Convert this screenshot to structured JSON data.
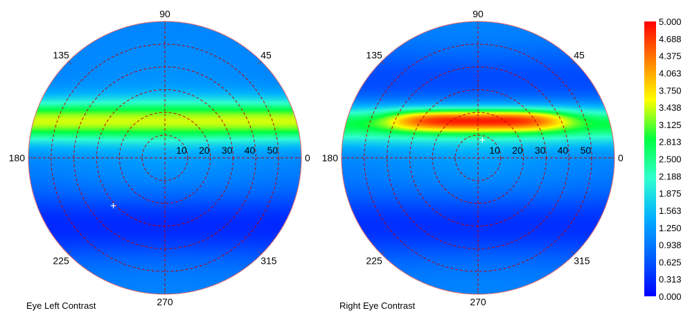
{
  "chart_data": [
    {
      "type": "heatmap",
      "title": "Eye Left Contrast",
      "projection": "polar",
      "angle_ticks": [
        "0",
        "45",
        "90",
        "135",
        "180",
        "225",
        "270",
        "315"
      ],
      "radial_ticks": [
        "10",
        "20",
        "30",
        "40",
        "50"
      ],
      "radial_range": [
        0,
        60
      ],
      "grid": "dashed red",
      "bands": [
        {
          "center_y": 0.27,
          "width": 0.22,
          "level": 3.45
        },
        {
          "center_y": -0.5,
          "width": 0.4,
          "level": 0.3
        }
      ],
      "base_level": 1.05,
      "marker": {
        "label": "+",
        "angle_deg": 223,
        "radius": 31
      }
    },
    {
      "type": "heatmap",
      "title": "Right Eye Contrast",
      "projection": "polar",
      "angle_ticks": [
        "0",
        "45",
        "90",
        "135",
        "180",
        "225",
        "270",
        "315"
      ],
      "radial_ticks": [
        "10",
        "20",
        "30",
        "40",
        "50"
      ],
      "radial_range": [
        0,
        60
      ],
      "grid": "dashed red",
      "bands": [
        {
          "center_y": 0.27,
          "width": 0.22,
          "level": 3.2
        },
        {
          "center_y": 0.58,
          "width": 0.35,
          "level": 0.55
        },
        {
          "center_y": -0.5,
          "width": 0.4,
          "level": 0.35
        }
      ],
      "hotspot": {
        "center_y": 0.27,
        "half_length": 0.65,
        "level": 4.85
      },
      "base_level": 1.05,
      "marker": {
        "label": "+",
        "angle_deg": 76,
        "radius": 8
      }
    }
  ],
  "colorbar": {
    "min": 0.0,
    "max": 5.0,
    "tick_labels": [
      "5.000",
      "4.688",
      "4.375",
      "4.063",
      "3.750",
      "3.438",
      "3.125",
      "2.813",
      "2.500",
      "2.188",
      "1.875",
      "1.563",
      "1.250",
      "0.938",
      "0.625",
      "0.313",
      "0.000"
    ],
    "colors": [
      "#0000ff",
      "#0060ff",
      "#00b0ff",
      "#30ffd0",
      "#00ff40",
      "#ffff00",
      "#ff8000",
      "#ff0000"
    ],
    "end_label_color": "#ff0000"
  }
}
